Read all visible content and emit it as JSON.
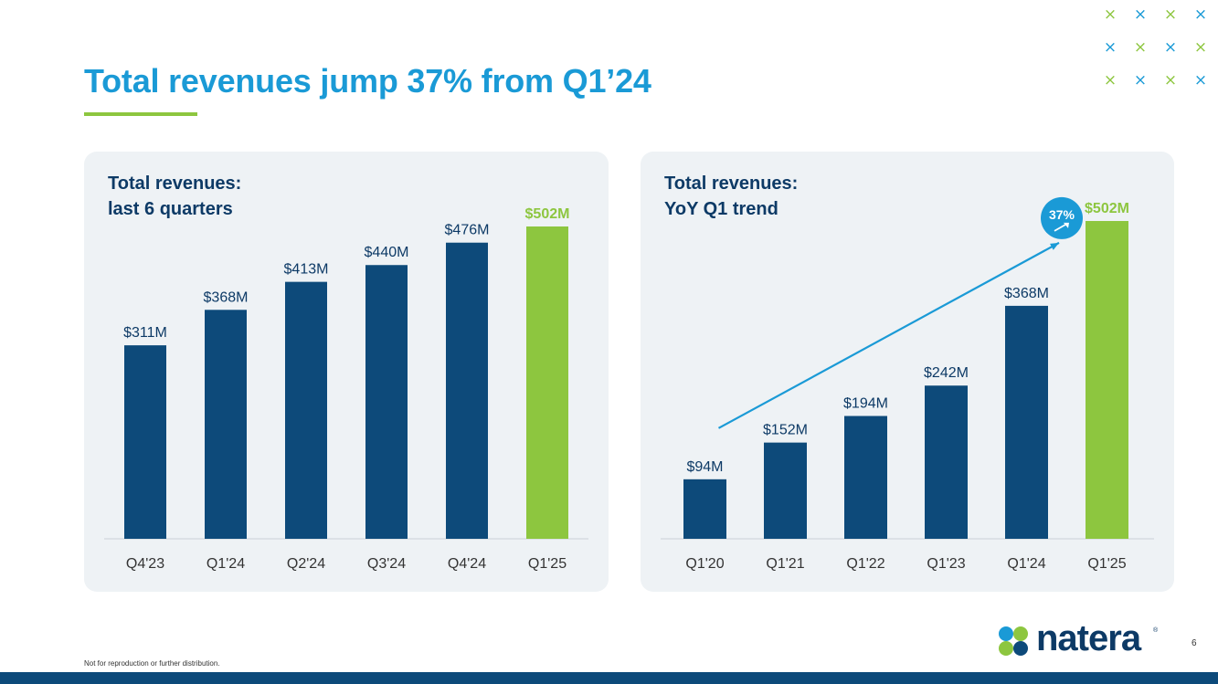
{
  "slide": {
    "title": "Total revenues jump 37% from Q1’24",
    "footnote": "Not for reproduction or further distribution.",
    "page_number": "6",
    "logo_text": "natera",
    "logo_reg": "®"
  },
  "colors": {
    "title": "#1a9ad6",
    "bar_primary": "#0d4a7a",
    "bar_highlight": "#8dc63f",
    "accent_green": "#8dc63f",
    "arrow": "#1a9ad6",
    "card_bg": "#eef2f5"
  },
  "decoration": {
    "cross_glyph": "×"
  },
  "chart_data": [
    {
      "type": "bar",
      "title_lines": [
        "Total revenues:",
        "last 6 quarters"
      ],
      "categories": [
        "Q4'23",
        "Q1'24",
        "Q2'24",
        "Q3'24",
        "Q4'24",
        "Q1'25"
      ],
      "values": [
        311,
        368,
        413,
        440,
        476,
        502
      ],
      "labels": [
        "$311M",
        "$368M",
        "$413M",
        "$440M",
        "$476M",
        "$502M"
      ],
      "highlight_index": 5,
      "unit": "$M",
      "ylim": [
        0,
        502
      ]
    },
    {
      "type": "bar",
      "title_lines": [
        "Total revenues:",
        "YoY Q1 trend"
      ],
      "categories": [
        "Q1'20",
        "Q1'21",
        "Q1'22",
        "Q1'23",
        "Q1'24",
        "Q1'25"
      ],
      "values": [
        94,
        152,
        194,
        242,
        368,
        502
      ],
      "labels": [
        "$94M",
        "$152M",
        "$194M",
        "$242M",
        "$368M",
        "$502M"
      ],
      "highlight_index": 5,
      "unit": "$M",
      "ylim": [
        0,
        502
      ],
      "annotation": {
        "text": "37%",
        "type": "growth-arrow-badge"
      }
    }
  ]
}
